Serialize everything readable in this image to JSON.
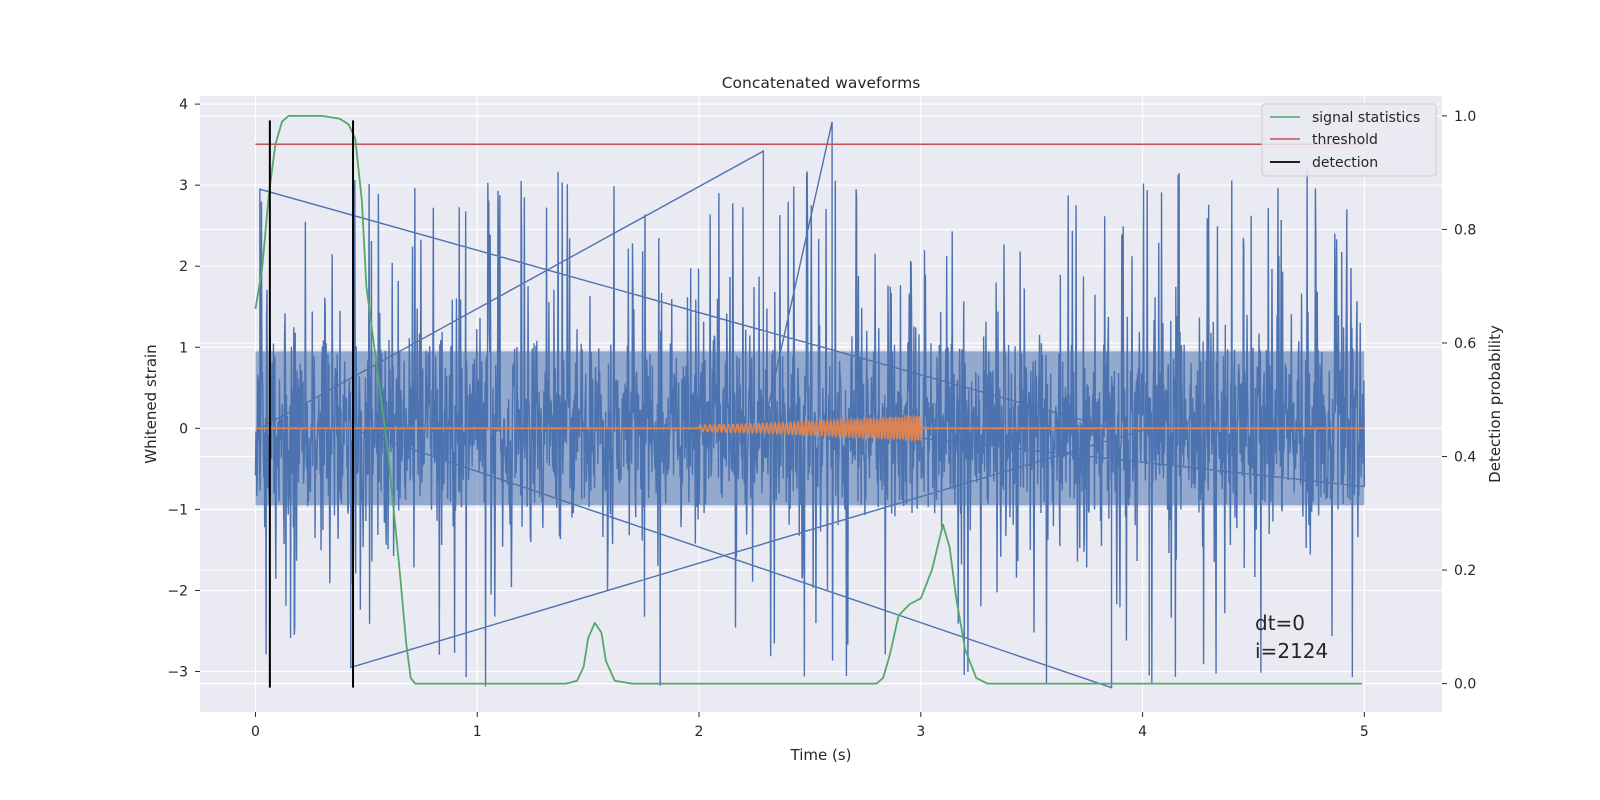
{
  "chart_data": {
    "type": "line",
    "title": "Concatenated waveforms",
    "xlabel": "Time (s)",
    "ylabel": "Whitened strain",
    "y2label": "Detection probability",
    "xlim": [
      -0.25,
      5.35
    ],
    "ylim": [
      -3.5,
      4.1
    ],
    "y2lim": [
      -0.05,
      1.035
    ],
    "xticks": [
      0,
      1,
      2,
      3,
      4,
      5
    ],
    "yticks": [
      -3,
      -2,
      -1,
      0,
      1,
      2,
      3,
      4
    ],
    "y2ticks": [
      0.0,
      0.2,
      0.4,
      0.6,
      0.8,
      1.0
    ],
    "ytick_labels": [
      "−3",
      "−2",
      "−1",
      "0",
      "1",
      "2",
      "3",
      "4"
    ],
    "y2tick_labels": [
      "0.0",
      "0.2",
      "0.4",
      "0.6",
      "0.8",
      "1.0"
    ],
    "grid": true,
    "legend_position": "top-right",
    "legend": [
      "signal statistics",
      "threshold",
      "detection"
    ],
    "colors": {
      "strain": "#4c72b0",
      "waveform": "#dd8452",
      "signal_statistics": "#55a868",
      "threshold": "#c44e52",
      "detection": "#000000",
      "background": "#eaeaf2",
      "grid": "#ffffff"
    },
    "series": [
      {
        "name": "signal statistics",
        "axis": "right",
        "x": [
          0.0,
          0.03,
          0.06,
          0.09,
          0.12,
          0.15,
          0.2,
          0.3,
          0.38,
          0.42,
          0.45,
          0.48,
          0.5,
          0.55,
          0.6,
          0.65,
          0.68,
          0.7,
          0.72,
          0.8,
          1.0,
          1.2,
          1.4,
          1.45,
          1.48,
          1.5,
          1.53,
          1.56,
          1.58,
          1.62,
          1.7,
          2.0,
          2.5,
          2.8,
          2.83,
          2.86,
          2.9,
          2.95,
          3.0,
          3.05,
          3.1,
          3.13,
          3.16,
          3.2,
          3.25,
          3.3,
          3.5,
          4.0,
          4.5,
          4.99
        ],
        "values": [
          0.66,
          0.73,
          0.86,
          0.95,
          0.99,
          1.0,
          1.0,
          1.0,
          0.995,
          0.985,
          0.96,
          0.85,
          0.7,
          0.55,
          0.4,
          0.2,
          0.07,
          0.01,
          0.0,
          0.0,
          0.0,
          0.0,
          0.0,
          0.005,
          0.03,
          0.08,
          0.107,
          0.09,
          0.04,
          0.005,
          0.0,
          0.0,
          0.0,
          0.0,
          0.01,
          0.05,
          0.12,
          0.14,
          0.15,
          0.2,
          0.28,
          0.24,
          0.15,
          0.06,
          0.01,
          0.0,
          0.0,
          0.0,
          0.0,
          0.0
        ]
      },
      {
        "name": "threshold",
        "axis": "right",
        "x": [
          0.0,
          5.0
        ],
        "values": [
          0.95,
          0.95
        ]
      },
      {
        "name": "detection",
        "axis": "right",
        "x": [
          0.065,
          0.44
        ],
        "ylim": [
          -3.2,
          3.8
        ]
      }
    ],
    "waveform": {
      "x_start": 2.0,
      "x_end": 3.0,
      "base_amplitude": 0.04,
      "end_amplitude": 0.15,
      "cycles": 45
    },
    "noise": {
      "x_start": 0.0,
      "x_end": 5.0,
      "core_amplitude": 0.95,
      "peak_max": 3.8,
      "peak_min": -3.2
    },
    "annotations": [
      {
        "text": "dt=0",
        "x": 4.5,
        "y": -2.45
      },
      {
        "text": "i=2124",
        "x": 4.5,
        "y": -2.8
      }
    ]
  }
}
